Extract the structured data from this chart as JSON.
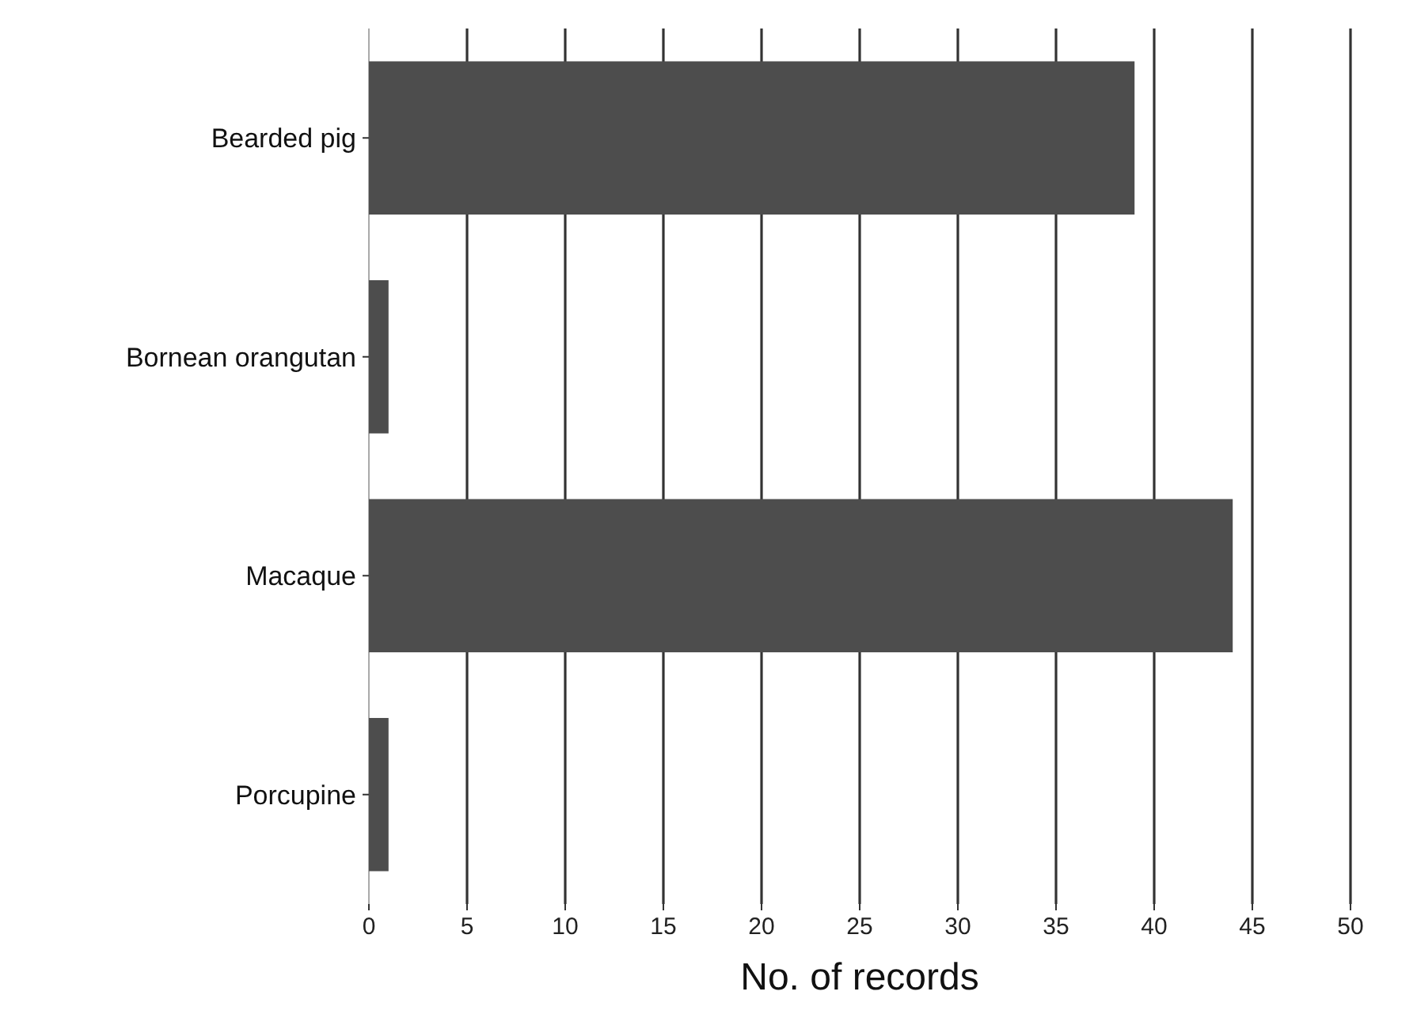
{
  "chart_data": {
    "type": "bar",
    "orientation": "horizontal",
    "categories": [
      "Bearded pig",
      "Bornean orangutan",
      "Macaque",
      "Porcupine"
    ],
    "values": [
      39,
      1,
      44,
      1
    ],
    "color": "#4d4d4d",
    "xlim": [
      0,
      50
    ],
    "xticks": [
      0,
      5,
      10,
      15,
      20,
      25,
      30,
      35,
      40,
      45,
      50
    ],
    "xlabel": "No. of records",
    "grid": "x"
  }
}
